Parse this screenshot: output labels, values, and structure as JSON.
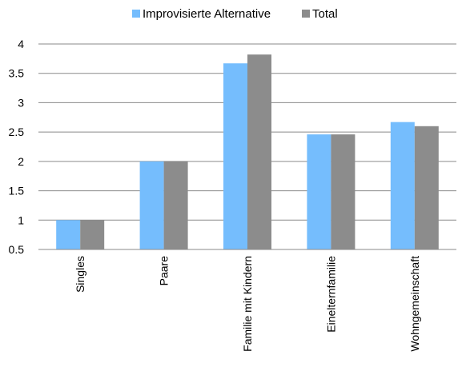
{
  "chart_data": {
    "type": "bar",
    "categories": [
      "Singles",
      "Paare",
      "Familie mit Kindern",
      "Einelternfamilie",
      "Wohngemeinschaft"
    ],
    "series": [
      {
        "name": "Improvisierte Alternative",
        "color": "#75bdfd",
        "values": [
          1.0,
          2.0,
          3.67,
          2.46,
          2.67
        ]
      },
      {
        "name": "Total",
        "color": "#8c8c8c",
        "values": [
          1.0,
          2.0,
          3.82,
          2.46,
          2.6
        ]
      }
    ],
    "yticks": [
      "0.5",
      "1",
      "1.5",
      "2",
      "2.5",
      "3",
      "3.5",
      "4"
    ],
    "ylim": [
      0.5,
      4
    ],
    "grid": true,
    "legend_position": "top"
  }
}
